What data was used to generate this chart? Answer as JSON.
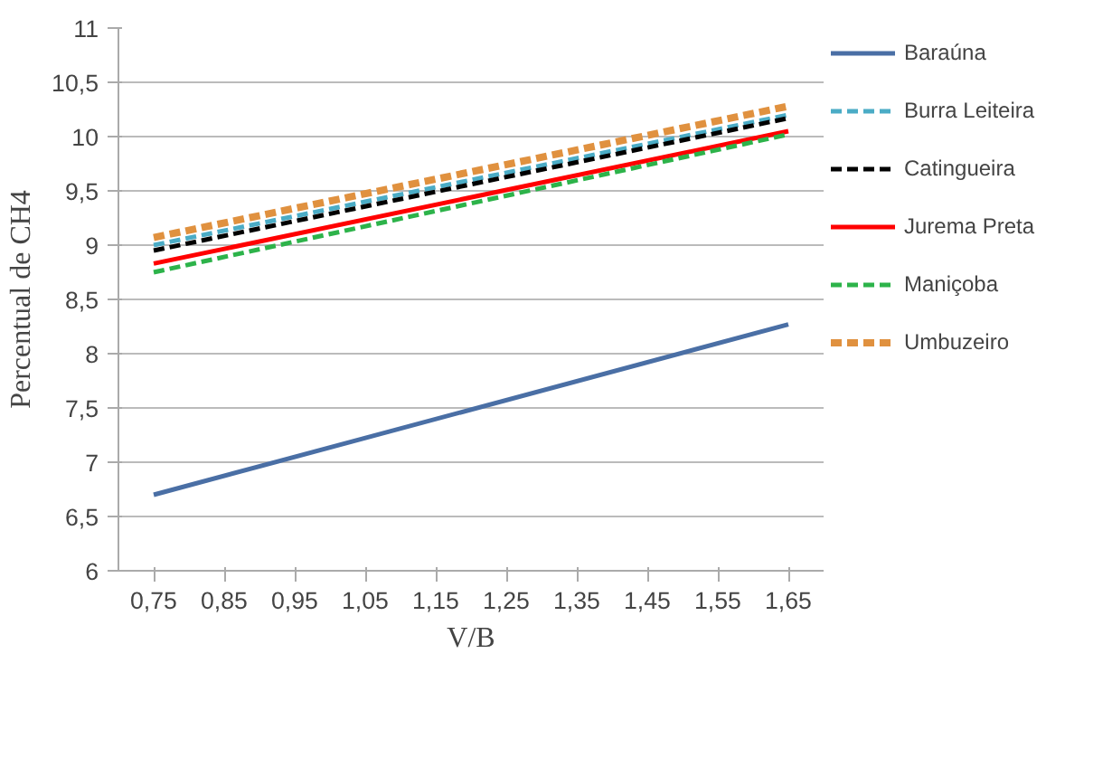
{
  "chart_data": {
    "type": "line",
    "xlabel": "V/B",
    "ylabel": "Percentual de CH4",
    "x": [
      0.75,
      1.65
    ],
    "series": [
      {
        "name": "Baraúna",
        "color": "#4a6fa5",
        "values": [
          6.7,
          8.27
        ],
        "line_style": "solid"
      },
      {
        "name": "Burra Leiteira",
        "color": "#4bacc6",
        "values": [
          9.0,
          10.2
        ],
        "line_style": "dashed"
      },
      {
        "name": "Catingueira",
        "color": "#000000",
        "values": [
          8.95,
          10.17
        ],
        "line_style": "dashed"
      },
      {
        "name": "Jurema Preta",
        "color": "#ff0000",
        "values": [
          8.83,
          10.05
        ],
        "line_style": "solid"
      },
      {
        "name": "Maniçoba",
        "color": "#2db34a",
        "values": [
          8.75,
          10.02
        ],
        "line_style": "dashed"
      },
      {
        "name": "Umbuzeiro",
        "color": "#e0913f",
        "values": [
          9.07,
          10.28
        ],
        "line_style": "dashed"
      }
    ],
    "xlim": [
      0.7,
      1.7
    ],
    "ylim": [
      6,
      11
    ],
    "xticks": [
      {
        "value": 0.75,
        "label": "0,75"
      },
      {
        "value": 0.85,
        "label": "0,85"
      },
      {
        "value": 0.95,
        "label": "0,95"
      },
      {
        "value": 1.05,
        "label": "1,05"
      },
      {
        "value": 1.15,
        "label": "1,15"
      },
      {
        "value": 1.25,
        "label": "1,25"
      },
      {
        "value": 1.35,
        "label": "1,35"
      },
      {
        "value": 1.45,
        "label": "1,45"
      },
      {
        "value": 1.55,
        "label": "1,55"
      },
      {
        "value": 1.65,
        "label": "1,65"
      }
    ],
    "yticks": [
      6,
      {
        "value": 6.5,
        "label": "6,5"
      },
      7,
      {
        "value": 7.5,
        "label": "7,5"
      },
      8,
      {
        "value": 8.5,
        "label": "8,5"
      },
      9,
      {
        "value": 9.5,
        "label": "9,5"
      },
      10,
      {
        "value": 10.5,
        "label": "10,5"
      },
      11
    ],
    "grid": "y",
    "legend": "right",
    "marker": "none"
  }
}
